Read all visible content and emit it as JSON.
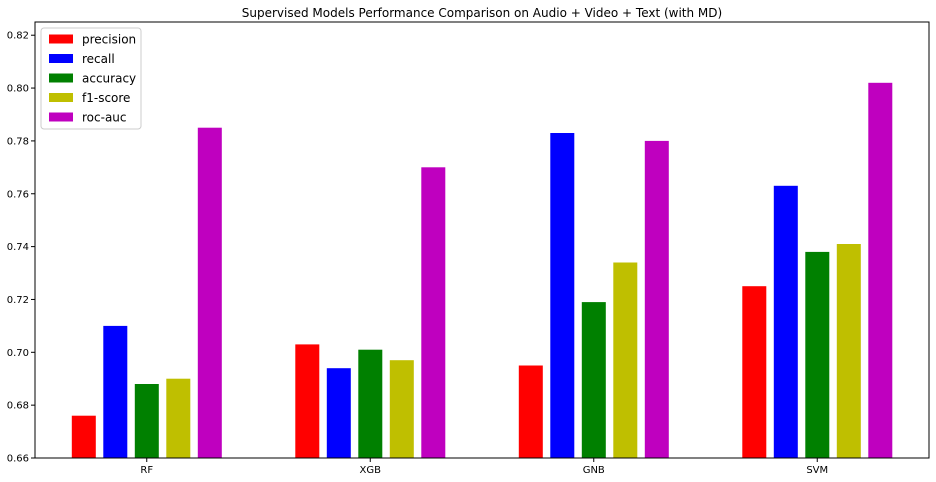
{
  "chart_data": {
    "type": "bar",
    "title": "Supervised Models Performance Comparison on Audio + Video + Text (with MD)",
    "xlabel": "",
    "ylabel": "",
    "categories": [
      "RF",
      "XGB",
      "GNB",
      "SVM"
    ],
    "ylim": [
      0.66,
      0.825
    ],
    "yticks": [
      "0.66",
      "0.68",
      "0.70",
      "0.72",
      "0.74",
      "0.76",
      "0.78",
      "0.80",
      "0.82"
    ],
    "grid": false,
    "legend_position": "top-left",
    "series": [
      {
        "name": "precision",
        "color": "#ff0000",
        "values": [
          0.676,
          0.703,
          0.695,
          0.725
        ]
      },
      {
        "name": "recall",
        "color": "#0000ff",
        "values": [
          0.71,
          0.694,
          0.783,
          0.763
        ]
      },
      {
        "name": "accuracy",
        "color": "#008000",
        "values": [
          0.688,
          0.701,
          0.719,
          0.738
        ]
      },
      {
        "name": "f1-score",
        "color": "#bfbf00",
        "values": [
          0.69,
          0.697,
          0.734,
          0.741
        ]
      },
      {
        "name": "roc-auc",
        "color": "#bf00bf",
        "values": [
          0.785,
          0.77,
          0.78,
          0.802
        ]
      }
    ]
  }
}
